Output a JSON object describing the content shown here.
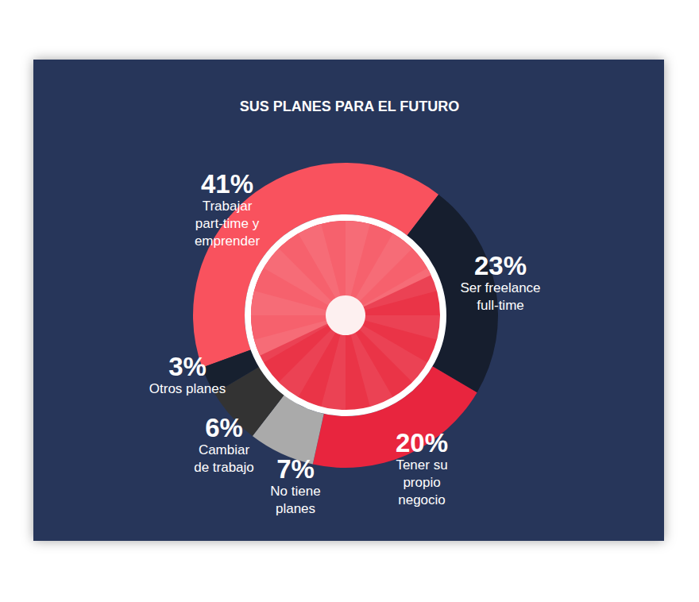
{
  "chart_data": {
    "type": "pie",
    "title": "SUS PLANES PARA EL FUTURO",
    "categories": [
      "Trabajar\npart-time y\nemprender",
      "Ser freelance\nfull-time",
      "Tener su\npropio\nnegocio",
      "No tiene\nplanes",
      "Cambiar\nde trabajo",
      "Otros planes"
    ],
    "values": [
      41,
      23,
      20,
      7,
      6,
      3
    ],
    "value_labels": [
      "41%",
      "23%",
      "20%",
      "7%",
      "6%",
      "3%"
    ],
    "colors": [
      "#f9525e",
      "#161e2e",
      "#e8253e",
      "#aaaaaa",
      "#333333",
      "#17202f"
    ],
    "data_labels": true
  }
}
